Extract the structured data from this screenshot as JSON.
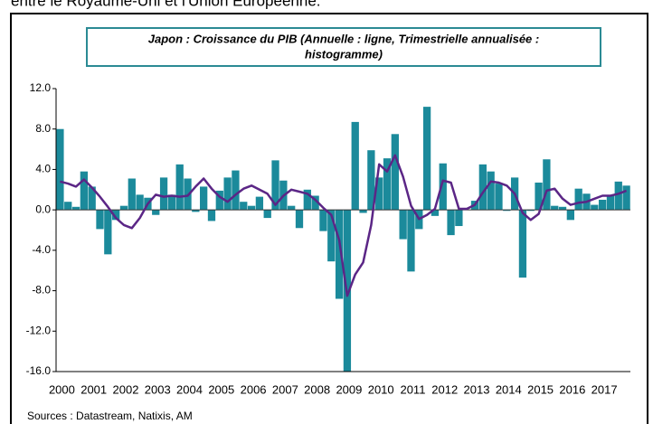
{
  "header_text": "entre le Royaume-Uni et l'Union Européenne.",
  "chart_data": {
    "type": "bar",
    "title": [
      "Japon : Croissance du PIB (Annuelle : ligne, Trimestrielle annualisée :",
      "histogramme)"
    ],
    "categories": [
      "2000",
      null,
      null,
      null,
      "2001",
      null,
      null,
      null,
      "2002",
      null,
      null,
      null,
      "2003",
      null,
      null,
      null,
      "2004",
      null,
      null,
      null,
      "2005",
      null,
      null,
      null,
      "2006",
      null,
      null,
      null,
      "2007",
      null,
      null,
      null,
      "2008",
      null,
      null,
      null,
      "2009",
      null,
      null,
      null,
      "2010",
      null,
      null,
      null,
      "2011",
      null,
      null,
      null,
      "2012",
      null,
      null,
      null,
      "2013",
      null,
      null,
      null,
      "2014",
      null,
      null,
      null,
      "2015",
      null,
      null,
      null,
      "2016",
      null,
      null,
      null,
      "2017",
      null,
      null,
      null
    ],
    "series": [
      {
        "type": "bar",
        "color": "#1b8a9b",
        "values": [
          8.0,
          0.8,
          0.3,
          3.8,
          2.3,
          -1.9,
          -4.4,
          -1.0,
          0.4,
          3.1,
          1.5,
          1.2,
          -0.5,
          3.2,
          1.5,
          4.5,
          3.1,
          -0.2,
          2.3,
          -1.1,
          1.9,
          3.2,
          3.9,
          0.8,
          0.4,
          1.3,
          -0.8,
          4.9,
          2.9,
          0.4,
          -1.8,
          2.0,
          1.4,
          -2.1,
          -5.1,
          -8.8,
          -16.0,
          8.7,
          -0.3,
          5.9,
          3.2,
          5.1,
          7.5,
          -2.9,
          -6.1,
          -1.9,
          10.2,
          -0.6,
          4.6,
          -2.5,
          -1.6,
          0.0,
          0.9,
          4.5,
          3.8,
          2.6,
          -0.1,
          3.2,
          -6.7,
          -0.1,
          2.7,
          5.0,
          0.4,
          0.3,
          -1.0,
          2.1,
          1.6,
          0.5,
          1.0,
          1.4,
          2.8,
          2.4
        ]
      },
      {
        "type": "line",
        "color": "#5b2686",
        "values": [
          2.8,
          2.6,
          2.3,
          3.0,
          2.2,
          1.3,
          0.3,
          -0.8,
          -1.5,
          -1.8,
          -0.8,
          0.6,
          1.5,
          1.3,
          1.4,
          1.3,
          1.4,
          2.3,
          3.1,
          2.1,
          1.3,
          0.8,
          1.5,
          2.1,
          2.4,
          2.0,
          1.6,
          0.5,
          1.4,
          2.0,
          1.8,
          1.6,
          1.0,
          0.2,
          -0.5,
          -3.0,
          -8.5,
          -6.4,
          -5.2,
          -1.5,
          4.5,
          3.8,
          5.4,
          3.3,
          0.4,
          -0.9,
          -0.5,
          0.1,
          2.9,
          2.7,
          0.1,
          0.1,
          0.5,
          1.7,
          2.8,
          2.7,
          2.4,
          1.6,
          -0.3,
          -1.0,
          -0.4,
          1.9,
          2.1,
          1.1,
          0.5,
          0.7,
          0.8,
          1.1,
          1.4,
          1.4,
          1.6,
          1.9
        ]
      }
    ],
    "ylim": [
      -16,
      12
    ],
    "yticks": [
      {
        "value": -16,
        "label": "-16.0"
      },
      {
        "value": -12,
        "label": "-12.0"
      },
      {
        "value": -8,
        "label": "-8.0"
      },
      {
        "value": -4,
        "label": "-4.0"
      },
      {
        "value": 0,
        "label": "0.0"
      },
      {
        "value": 4,
        "label": "4.0"
      },
      {
        "value": 8,
        "label": "8.0"
      },
      {
        "value": 12,
        "label": "12.0"
      }
    ],
    "source": "Sources : Datastream, Natixis, AM"
  }
}
